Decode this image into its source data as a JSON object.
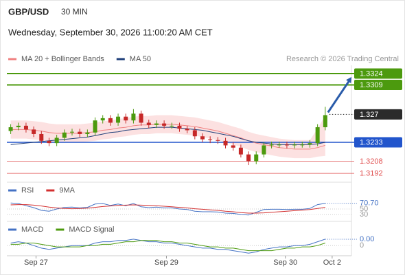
{
  "chart_data": [
    {
      "type": "candlestick",
      "title": "GBP/USD",
      "timeframe": "30 MIN",
      "subtitle": "Wednesday, September 30, 2026 11:00:20 AM CET",
      "source": "Research © 2026 Trading Central",
      "xlim": [
        -0.5,
        42
      ],
      "ylim": [
        1.3183,
        1.33395
      ],
      "up_color": "#4c9a0e",
      "down_color": "#c62828",
      "open": [
        1.3248,
        1.3253,
        1.3255,
        1.325,
        1.3244,
        1.3235,
        1.3232,
        1.3239,
        1.3246,
        1.3247,
        1.3244,
        1.3246,
        1.3262,
        1.3265,
        1.3259,
        1.3267,
        1.3262,
        1.3271,
        1.3259,
        1.3256,
        1.3258,
        1.3255,
        1.3255,
        1.3251,
        1.3249,
        1.3241,
        1.3237,
        1.3236,
        1.3235,
        1.3229,
        1.3226,
        1.3217,
        1.3208,
        1.3217,
        1.3229,
        1.323,
        1.323,
        1.3229,
        1.323,
        1.323,
        1.3232,
        1.3253
      ],
      "high": [
        1.3257,
        1.3259,
        1.3259,
        1.3254,
        1.3248,
        1.3239,
        1.3243,
        1.325,
        1.3251,
        1.3251,
        1.325,
        1.3266,
        1.3269,
        1.3269,
        1.3271,
        1.3271,
        1.3277,
        1.3275,
        1.3263,
        1.3262,
        1.3262,
        1.3259,
        1.3259,
        1.3255,
        1.3253,
        1.3245,
        1.3241,
        1.324,
        1.3239,
        1.3233,
        1.323,
        1.3221,
        1.3221,
        1.3233,
        1.3234,
        1.3234,
        1.3234,
        1.3234,
        1.3234,
        1.3236,
        1.3257,
        1.328
      ],
      "low": [
        1.3244,
        1.3249,
        1.3246,
        1.324,
        1.3231,
        1.3228,
        1.3228,
        1.3235,
        1.3242,
        1.324,
        1.324,
        1.3242,
        1.3258,
        1.3255,
        1.3255,
        1.3258,
        1.3258,
        1.3255,
        1.3252,
        1.3252,
        1.3251,
        1.3251,
        1.3247,
        1.3245,
        1.3237,
        1.3233,
        1.3232,
        1.3231,
        1.3225,
        1.3222,
        1.3213,
        1.3203,
        1.3204,
        1.3213,
        1.3225,
        1.3226,
        1.3225,
        1.3225,
        1.3226,
        1.3226,
        1.3228,
        1.3249
      ],
      "close": [
        1.3253,
        1.3255,
        1.325,
        1.3244,
        1.3235,
        1.3232,
        1.3239,
        1.3246,
        1.3247,
        1.3244,
        1.3246,
        1.3262,
        1.3265,
        1.3259,
        1.3267,
        1.3262,
        1.3271,
        1.3259,
        1.3256,
        1.3258,
        1.3255,
        1.3255,
        1.3251,
        1.3249,
        1.3241,
        1.3237,
        1.3236,
        1.3235,
        1.3229,
        1.3226,
        1.3217,
        1.3208,
        1.3217,
        1.3229,
        1.323,
        1.323,
        1.3229,
        1.323,
        1.323,
        1.3232,
        1.3253,
        1.3269
      ],
      "series": [
        {
          "name": "MA 20 + Bollinger Bands",
          "color": "#f08080",
          "band_color": "#fbd9d9",
          "values": [
            1.325,
            1.325,
            1.325,
            1.3249,
            1.3248,
            1.3246,
            1.3245,
            1.3245,
            1.3245,
            1.3245,
            1.3246,
            1.3247,
            1.3249,
            1.325,
            1.3252,
            1.3253,
            1.3255,
            1.3256,
            1.3256,
            1.3257,
            1.3257,
            1.3257,
            1.3256,
            1.3255,
            1.3254,
            1.3252,
            1.325,
            1.3248,
            1.3245,
            1.3242,
            1.3239,
            1.3235,
            1.3232,
            1.323,
            1.3228,
            1.3226,
            1.3225,
            1.3224,
            1.3224,
            1.3224,
            1.3226,
            1.3229
          ],
          "upper": [
            1.3262,
            1.3262,
            1.3262,
            1.3261,
            1.326,
            1.3258,
            1.3257,
            1.3257,
            1.3257,
            1.3257,
            1.3258,
            1.3259,
            1.3261,
            1.3262,
            1.3264,
            1.3265,
            1.3267,
            1.3268,
            1.3268,
            1.3269,
            1.3269,
            1.3269,
            1.3268,
            1.3267,
            1.3266,
            1.3264,
            1.3262,
            1.326,
            1.3257,
            1.3254,
            1.3251,
            1.3247,
            1.3244,
            1.3242,
            1.324,
            1.3238,
            1.3237,
            1.3236,
            1.3236,
            1.3236,
            1.3251,
            1.3269
          ],
          "lower": [
            1.3238,
            1.3238,
            1.3238,
            1.3237,
            1.3236,
            1.3234,
            1.3233,
            1.3233,
            1.3233,
            1.3233,
            1.3234,
            1.3235,
            1.3237,
            1.3238,
            1.324,
            1.3241,
            1.3243,
            1.3244,
            1.3244,
            1.3245,
            1.3245,
            1.3245,
            1.3244,
            1.3243,
            1.3242,
            1.324,
            1.3238,
            1.3236,
            1.3233,
            1.323,
            1.3227,
            1.3223,
            1.322,
            1.3218,
            1.3216,
            1.3214,
            1.3213,
            1.3212,
            1.3212,
            1.3212,
            1.3214,
            1.3215
          ]
        },
        {
          "name": "MA 50",
          "color": "#1f3f7a",
          "values": [
            1.323,
            1.3231,
            1.3232,
            1.3233,
            1.3234,
            1.3235,
            1.3236,
            1.3237,
            1.3238,
            1.3239,
            1.324,
            1.3242,
            1.3244,
            1.3246,
            1.3247,
            1.3249,
            1.325,
            1.3251,
            1.3252,
            1.3253,
            1.3253,
            1.3253,
            1.3252,
            1.3251,
            1.325,
            1.3249,
            1.3247,
            1.3245,
            1.3243,
            1.3241,
            1.3238,
            1.3235,
            1.3233,
            1.3232,
            1.3231,
            1.323,
            1.323,
            1.323,
            1.323,
            1.323,
            1.3231,
            1.3233
          ]
        }
      ],
      "levels": [
        {
          "value": 1.3324,
          "color": "#4c9a0e",
          "line": "thick",
          "box": true
        },
        {
          "value": 1.3309,
          "color": "#4c9a0e",
          "line": "thick",
          "box": true
        },
        {
          "value": 1.327,
          "color": "#2b2b2b",
          "line": "dotted",
          "box": true
        },
        {
          "value": 1.3233,
          "color": "#2255cc",
          "line": "medium",
          "box": true
        },
        {
          "value": 1.3208,
          "color": "#e05050",
          "line": "thin",
          "box": false
        },
        {
          "value": 1.3192,
          "color": "#e05050",
          "line": "thin",
          "box": false
        }
      ]
    },
    {
      "type": "line",
      "xlim": [
        -0.5,
        42
      ],
      "ylim": [
        0,
        100
      ],
      "yticks": [
        50,
        30
      ],
      "series": [
        {
          "name": "RSI",
          "color": "#4472c4",
          "values": [
            72,
            70,
            62,
            55,
            45,
            42,
            50,
            56,
            57,
            54,
            56,
            68,
            70,
            63,
            68,
            62,
            70,
            58,
            55,
            57,
            54,
            54,
            50,
            48,
            42,
            40,
            40,
            39,
            35,
            34,
            30,
            28,
            38,
            48,
            49,
            49,
            48,
            49,
            49,
            52,
            66,
            70.7
          ],
          "value_labels": [
            null,
            null,
            null,
            null,
            null,
            null,
            null,
            null,
            null,
            null,
            null,
            null,
            null,
            null,
            null,
            null,
            null,
            null,
            null,
            null,
            null,
            null,
            null,
            null,
            null,
            null,
            null,
            null,
            null,
            null,
            null,
            null,
            null,
            null,
            null,
            null,
            null,
            null,
            null,
            null,
            null,
            "70.70"
          ]
        },
        {
          "name": "9MA",
          "color": "#d32f2f",
          "values": [
            65,
            66,
            66,
            64,
            61,
            57,
            54,
            52,
            51,
            52,
            53,
            56,
            59,
            61,
            63,
            64,
            65,
            64,
            63,
            62,
            60,
            58,
            56,
            54,
            51,
            49,
            47,
            45,
            42,
            40,
            37,
            35,
            35,
            36,
            38,
            40,
            42,
            44,
            46,
            48,
            52,
            56
          ]
        }
      ]
    },
    {
      "type": "line",
      "xlim": [
        -0.5,
        42
      ],
      "ylim": [
        -0.0008,
        0.0012
      ],
      "yticks": [
        0
      ],
      "xticks": [
        {
          "value": 3.3,
          "label": "Sep 27"
        },
        {
          "value": 20.3,
          "label": "Sep 29"
        },
        {
          "value": 35.8,
          "label": "Sep 30"
        },
        {
          "value": 41.9,
          "label": "Oct 2"
        }
      ],
      "series": [
        {
          "name": "MACD",
          "color": "#4472c4",
          "values": [
            0.0002,
            0.0003,
            0.0002,
            0.0,
            -0.0002,
            -0.0003,
            -0.0002,
            -0.0001,
            0.0,
            0.0,
            0.0,
            0.0002,
            0.0003,
            0.0003,
            0.0004,
            0.0004,
            0.0005,
            0.0004,
            0.0003,
            0.0003,
            0.0002,
            0.0002,
            0.0001,
            0.0,
            -0.0001,
            -0.0002,
            -0.0002,
            -0.0003,
            -0.0003,
            -0.0004,
            -0.0005,
            -0.0006,
            -0.0005,
            -0.0003,
            -0.0002,
            -0.0001,
            -0.0001,
            0.0,
            0.0,
            0.0001,
            0.0003,
            0.0005
          ],
          "value_labels": [
            null,
            null,
            null,
            null,
            null,
            null,
            null,
            null,
            null,
            null,
            null,
            null,
            null,
            null,
            null,
            null,
            null,
            null,
            null,
            null,
            null,
            null,
            null,
            null,
            null,
            null,
            null,
            null,
            null,
            null,
            null,
            null,
            null,
            null,
            null,
            null,
            null,
            null,
            null,
            null,
            null,
            "0.00"
          ]
        },
        {
          "name": "MACD Signal",
          "color": "#4c9a0e",
          "values": [
            0.0001,
            0.0001,
            0.0002,
            0.0002,
            0.0001,
            0.0,
            -0.0001,
            -0.0001,
            -0.0001,
            -0.0001,
            0.0,
            0.0,
            0.0001,
            0.0001,
            0.0002,
            0.0003,
            0.0003,
            0.0004,
            0.0004,
            0.0004,
            0.0003,
            0.0003,
            0.0002,
            0.0002,
            0.0001,
            0.0,
            -0.0001,
            -0.0001,
            -0.0002,
            -0.0002,
            -0.0003,
            -0.0004,
            -0.0004,
            -0.0004,
            -0.0004,
            -0.0003,
            -0.0002,
            -0.0002,
            -0.0001,
            -0.0001,
            0.0,
            0.0002
          ]
        }
      ]
    }
  ]
}
